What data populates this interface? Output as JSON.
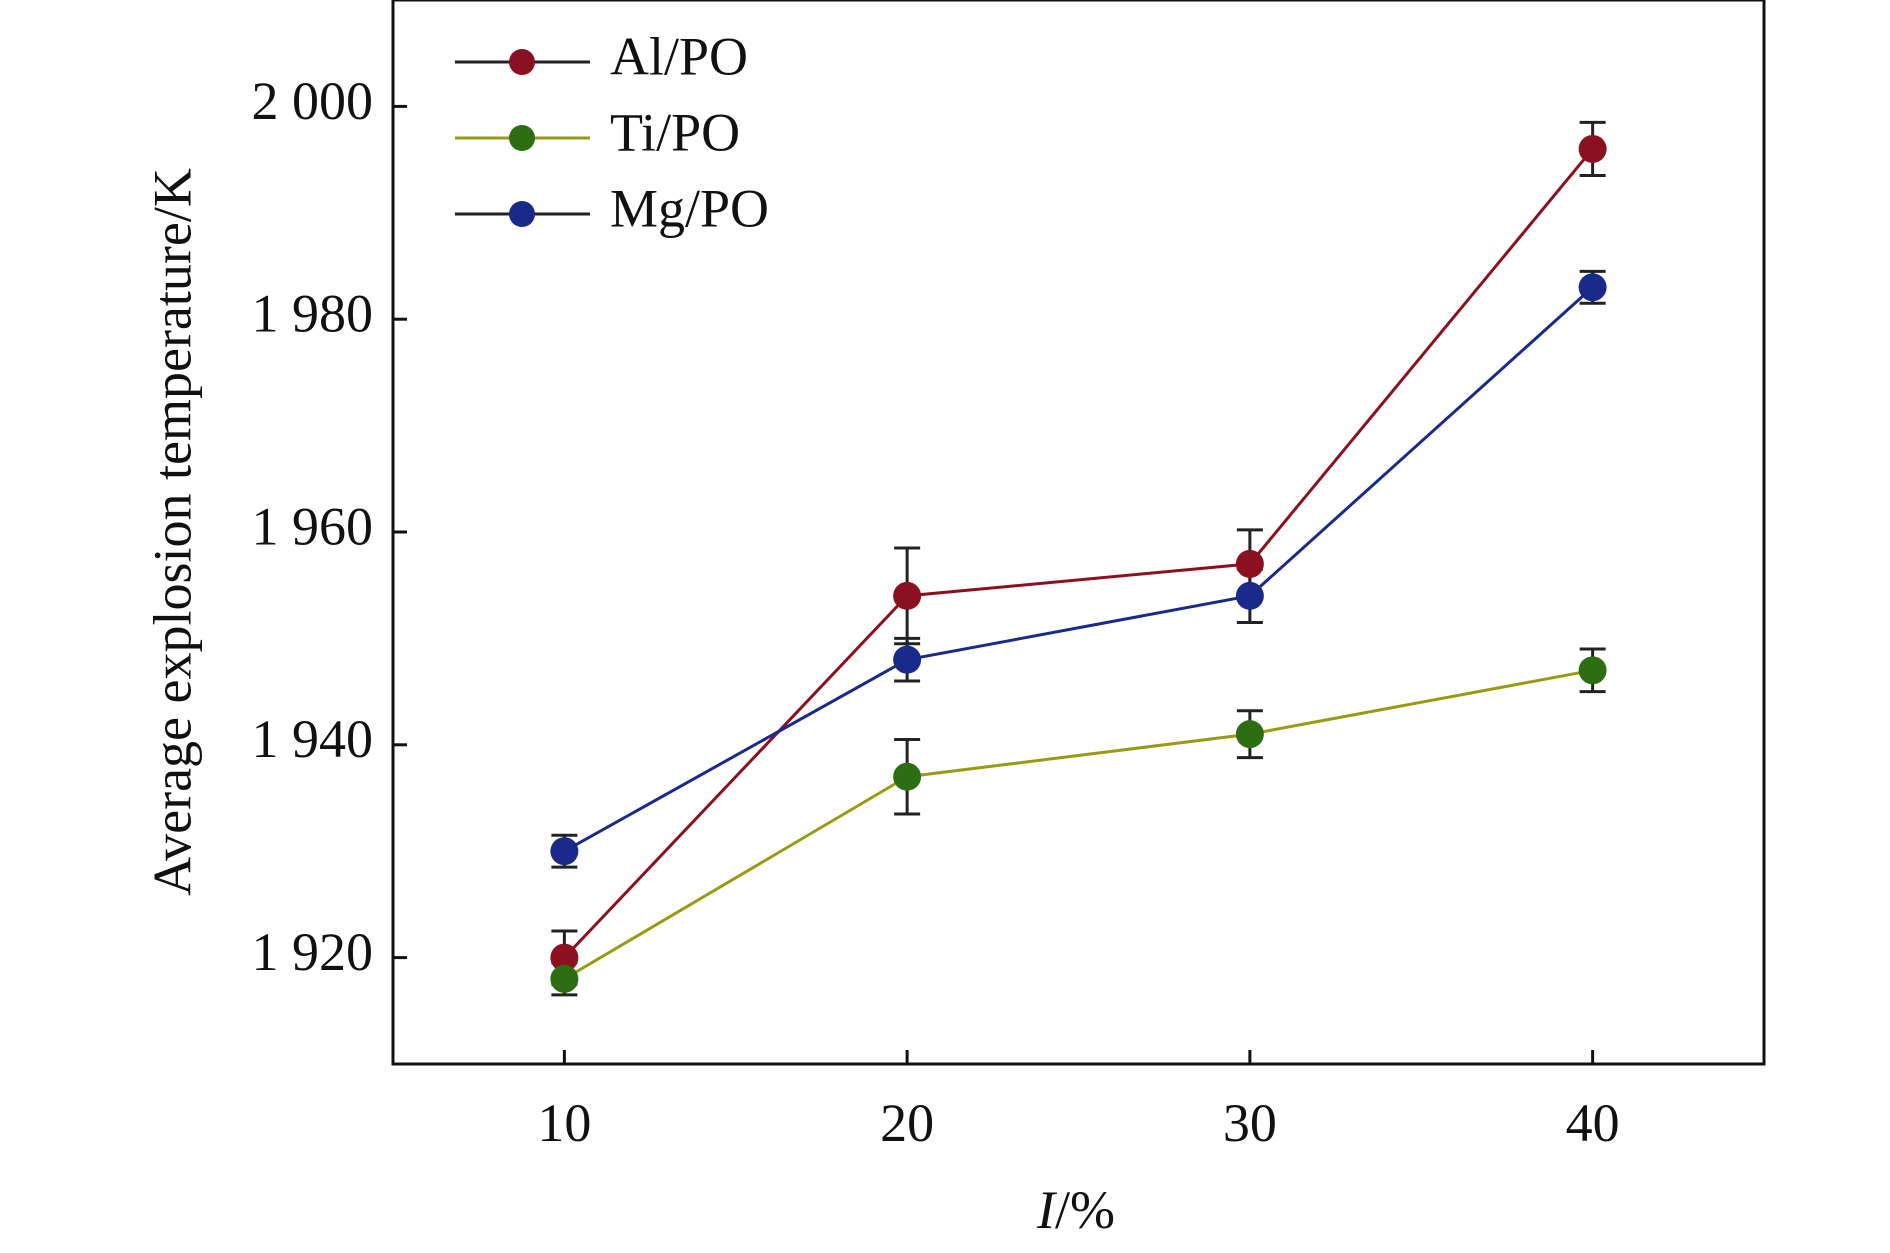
{
  "chart_data": {
    "type": "line",
    "title": "",
    "xlabel": {
      "italic": "I",
      "rest": "/%"
    },
    "ylabel": "Average explosion temperature/K",
    "xlim": [
      5,
      45
    ],
    "ylim": [
      1910,
      2010
    ],
    "x": [
      10,
      20,
      30,
      40
    ],
    "x_tick_labels": [
      "10",
      "20",
      "30",
      "40"
    ],
    "y_ticks": [
      1920,
      1940,
      1960,
      1980,
      2000
    ],
    "y_tick_labels": [
      "1 920",
      "1 940",
      "1 960",
      "1 980",
      "2 000"
    ],
    "grid": false,
    "legend_position": "top-left",
    "series": [
      {
        "name": "Al/PO",
        "color": "#8b1020",
        "values": [
          1920,
          1954,
          1957,
          1996
        ],
        "errors": [
          2.5,
          4.5,
          3.2,
          2.5
        ]
      },
      {
        "name": "Ti/PO",
        "color": "#2e6e12",
        "line_color": "#9a9a10",
        "values": [
          1918,
          1937,
          1941,
          1947
        ],
        "errors": [
          1.5,
          3.5,
          2.2,
          2.0
        ]
      },
      {
        "name": "Mg/PO",
        "color": "#1a2a8a",
        "values": [
          1930,
          1948,
          1954,
          1983
        ],
        "errors": [
          1.5,
          2.0,
          2.5,
          1.5
        ]
      }
    ]
  }
}
